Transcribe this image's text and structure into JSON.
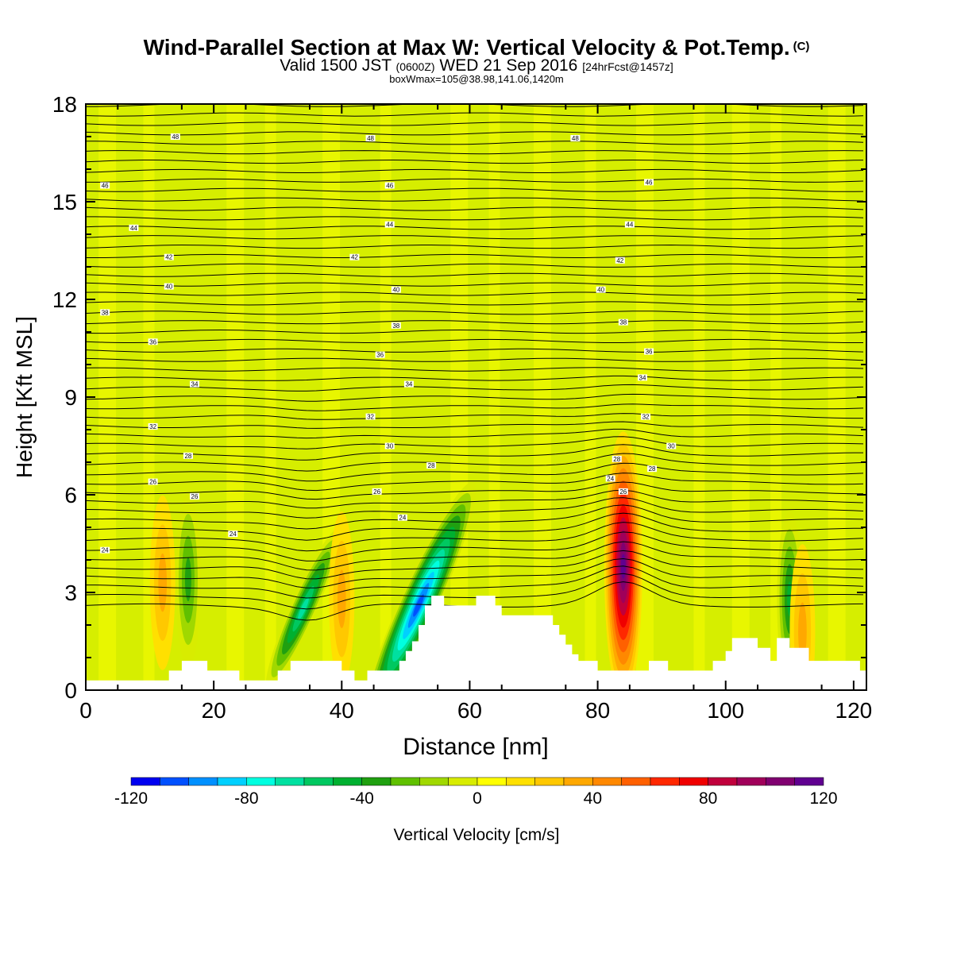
{
  "title": {
    "main": "Wind-Parallel Section at Max W: Vertical Velocity & Pot.Temp.",
    "suffix": "(C)"
  },
  "subtitle": {
    "pre": "Valid 1500 JST",
    "utc": "(0600Z)",
    "mid": "WED 21 Sep 2016",
    "fcst": "[24hrFcst@1457z]"
  },
  "box_line": "boxWmax=105@38.98,141.06,1420m",
  "colorbar": {
    "label": "Vertical Velocity [cm/s]",
    "tick_labels": [
      "-120",
      "-80",
      "-40",
      "0",
      "40",
      "80",
      "120"
    ],
    "colors": [
      "#0000f0",
      "#0050ff",
      "#0090ff",
      "#00d0ff",
      "#00ffe0",
      "#00e0a0",
      "#00c860",
      "#00b030",
      "#20a010",
      "#60c000",
      "#a0d800",
      "#d8ec00",
      "#ffff00",
      "#ffe000",
      "#ffc800",
      "#ffa800",
      "#ff8800",
      "#ff6000",
      "#ff2800",
      "#f00000",
      "#c0003c",
      "#a0005a",
      "#800070",
      "#600090"
    ]
  },
  "chart_data": {
    "type": "heatmap",
    "title": "Wind-Parallel Section at Max W: Vertical Velocity & Pot.Temp.",
    "xlabel": "Distance [nm]",
    "ylabel": "Height [Kft MSL]",
    "xlim": [
      0,
      122
    ],
    "ylim": [
      0,
      18
    ],
    "x_ticks": [
      0,
      20,
      40,
      60,
      80,
      100,
      120
    ],
    "y_ticks": [
      0,
      3,
      6,
      9,
      12,
      15,
      18
    ],
    "vertical_velocity_features": [
      {
        "x": 52,
        "y": 2.6,
        "w_cm_s": -110
      },
      {
        "x": 34,
        "y": 2.5,
        "w_cm_s": -65
      },
      {
        "x": 16,
        "y": 3.4,
        "w_cm_s": -40
      },
      {
        "x": 110,
        "y": 2.8,
        "w_cm_s": -50
      },
      {
        "x": 84,
        "y": 3.8,
        "w_cm_s": 110
      },
      {
        "x": 12,
        "y": 3.3,
        "w_cm_s": 30
      },
      {
        "x": 40,
        "y": 2.8,
        "w_cm_s": 25
      },
      {
        "x": 112,
        "y": 1.8,
        "w_cm_s": 30
      }
    ],
    "theta_contour_labels": [
      {
        "x": 3,
        "y": 4.3,
        "label": "24"
      },
      {
        "x": 23,
        "y": 4.8,
        "label": "24"
      },
      {
        "x": 49.5,
        "y": 5.3,
        "label": "24"
      },
      {
        "x": 10.5,
        "y": 6.4,
        "label": "26"
      },
      {
        "x": 17,
        "y": 5.95,
        "label": "26"
      },
      {
        "x": 45.5,
        "y": 6.1,
        "label": "26"
      },
      {
        "x": 82,
        "y": 6.5,
        "label": "24"
      },
      {
        "x": 84,
        "y": 6.1,
        "label": "26"
      },
      {
        "x": 16,
        "y": 7.2,
        "label": "28"
      },
      {
        "x": 54,
        "y": 6.9,
        "label": "28"
      },
      {
        "x": 83,
        "y": 7.1,
        "label": "28"
      },
      {
        "x": 88.5,
        "y": 6.8,
        "label": "28"
      },
      {
        "x": 10.5,
        "y": 8.1,
        "label": "32"
      },
      {
        "x": 47.5,
        "y": 7.5,
        "label": "30"
      },
      {
        "x": 91.5,
        "y": 7.5,
        "label": "30"
      },
      {
        "x": 17,
        "y": 9.4,
        "label": "34"
      },
      {
        "x": 44.5,
        "y": 8.4,
        "label": "32"
      },
      {
        "x": 50.5,
        "y": 9.4,
        "label": "34"
      },
      {
        "x": 87.5,
        "y": 8.4,
        "label": "32"
      },
      {
        "x": 87,
        "y": 9.6,
        "label": "34"
      },
      {
        "x": 10.5,
        "y": 10.7,
        "label": "36"
      },
      {
        "x": 46,
        "y": 10.3,
        "label": "36"
      },
      {
        "x": 88,
        "y": 10.4,
        "label": "36"
      },
      {
        "x": 3,
        "y": 11.6,
        "label": "38"
      },
      {
        "x": 48.5,
        "y": 11.2,
        "label": "38"
      },
      {
        "x": 84,
        "y": 11.3,
        "label": "38"
      },
      {
        "x": 13,
        "y": 12.4,
        "label": "40"
      },
      {
        "x": 48.5,
        "y": 12.3,
        "label": "40"
      },
      {
        "x": 80.5,
        "y": 12.3,
        "label": "40"
      },
      {
        "x": 13,
        "y": 13.3,
        "label": "42"
      },
      {
        "x": 42,
        "y": 13.3,
        "label": "42"
      },
      {
        "x": 83.5,
        "y": 13.2,
        "label": "42"
      },
      {
        "x": 7.5,
        "y": 14.2,
        "label": "44"
      },
      {
        "x": 47.5,
        "y": 14.3,
        "label": "44"
      },
      {
        "x": 85,
        "y": 14.3,
        "label": "44"
      },
      {
        "x": 3,
        "y": 15.5,
        "label": "46"
      },
      {
        "x": 47.5,
        "y": 15.5,
        "label": "46"
      },
      {
        "x": 88,
        "y": 15.6,
        "label": "46"
      },
      {
        "x": 14,
        "y": 17.0,
        "label": "48"
      },
      {
        "x": 44.5,
        "y": 16.95,
        "label": "48"
      },
      {
        "x": 76.5,
        "y": 16.95,
        "label": "48"
      }
    ],
    "terrain_height_kft": [
      [
        0,
        0.3
      ],
      [
        13,
        0.3
      ],
      [
        13,
        0.6
      ],
      [
        15,
        0.6
      ],
      [
        15,
        0.9
      ],
      [
        19,
        0.9
      ],
      [
        19,
        0.6
      ],
      [
        24,
        0.6
      ],
      [
        24,
        0.3
      ],
      [
        30,
        0.3
      ],
      [
        30,
        0.6
      ],
      [
        32,
        0.6
      ],
      [
        32,
        0.9
      ],
      [
        40,
        0.9
      ],
      [
        40,
        0.6
      ],
      [
        42,
        0.6
      ],
      [
        42,
        0.3
      ],
      [
        44,
        0.3
      ],
      [
        44,
        0.6
      ],
      [
        49,
        0.6
      ],
      [
        49,
        0.9
      ],
      [
        50,
        0.9
      ],
      [
        50,
        1.2
      ],
      [
        51,
        1.2
      ],
      [
        51,
        1.5
      ],
      [
        52,
        1.5
      ],
      [
        52,
        2.0
      ],
      [
        53,
        2.0
      ],
      [
        53,
        2.6
      ],
      [
        54,
        2.6
      ],
      [
        54,
        2.9
      ],
      [
        56,
        2.9
      ],
      [
        56,
        2.6
      ],
      [
        61,
        2.6
      ],
      [
        61,
        2.9
      ],
      [
        64,
        2.9
      ],
      [
        64,
        2.6
      ],
      [
        65,
        2.6
      ],
      [
        65,
        2.3
      ],
      [
        73,
        2.3
      ],
      [
        73,
        2.0
      ],
      [
        74,
        2.0
      ],
      [
        74,
        1.7
      ],
      [
        75,
        1.7
      ],
      [
        75,
        1.4
      ],
      [
        76,
        1.4
      ],
      [
        76,
        1.1
      ],
      [
        77,
        1.1
      ],
      [
        77,
        0.9
      ],
      [
        80,
        0.9
      ],
      [
        80,
        0.6
      ],
      [
        88,
        0.6
      ],
      [
        88,
        0.9
      ],
      [
        91,
        0.9
      ],
      [
        91,
        0.6
      ],
      [
        98,
        0.6
      ],
      [
        98,
        0.9
      ],
      [
        100,
        0.9
      ],
      [
        100,
        1.2
      ],
      [
        101,
        1.2
      ],
      [
        101,
        1.6
      ],
      [
        105,
        1.6
      ],
      [
        105,
        1.3
      ],
      [
        107,
        1.3
      ],
      [
        107,
        0.9
      ],
      [
        108,
        0.9
      ],
      [
        108,
        1.6
      ],
      [
        110,
        1.6
      ],
      [
        110,
        1.3
      ],
      [
        113,
        1.3
      ],
      [
        113,
        0.9
      ],
      [
        121,
        0.9
      ],
      [
        121,
        0.6
      ],
      [
        122,
        0.6
      ]
    ]
  }
}
